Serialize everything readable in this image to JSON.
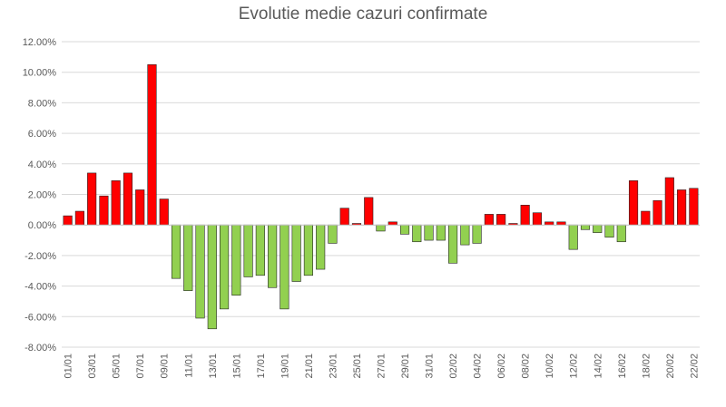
{
  "chart_data": {
    "type": "bar",
    "title": "Evolutie medie cazuri confirmate",
    "xlabel": "",
    "ylabel": "",
    "ylim": [
      -0.08,
      0.12
    ],
    "y_ticks": [
      0.12,
      0.1,
      0.08,
      0.06,
      0.04,
      0.02,
      0.0,
      -0.02,
      -0.04,
      -0.06,
      -0.08
    ],
    "y_tick_labels": [
      "12.00%",
      "10.00%",
      "8.00%",
      "6.00%",
      "4.00%",
      "2.00%",
      "0.00%",
      "-2.00%",
      "-4.00%",
      "-6.00%",
      "-8.00%"
    ],
    "grid": true,
    "legend": "none",
    "colors": {
      "positive": "#FF0000",
      "negative": "#92D050",
      "bar_outline": "#262626",
      "grid": "#D9D9D9",
      "text": "#595959"
    },
    "categories": [
      "01/01",
      "02/01",
      "03/01",
      "04/01",
      "05/01",
      "06/01",
      "07/01",
      "08/01",
      "09/01",
      "10/01",
      "11/01",
      "12/01",
      "13/01",
      "14/01",
      "15/01",
      "16/01",
      "17/01",
      "18/01",
      "19/01",
      "20/01",
      "21/01",
      "22/01",
      "23/01",
      "24/01",
      "25/01",
      "26/01",
      "27/01",
      "28/01",
      "29/01",
      "30/01",
      "31/01",
      "01/02",
      "02/02",
      "03/02",
      "04/02",
      "05/02",
      "06/02",
      "07/02",
      "08/02",
      "09/02",
      "10/02",
      "11/02",
      "12/02",
      "13/02",
      "14/02",
      "15/02",
      "16/02",
      "17/02",
      "18/02",
      "19/02",
      "20/02",
      "21/02",
      "22/02"
    ],
    "x_tick_labels": [
      "01/01",
      "03/01",
      "05/01",
      "07/01",
      "09/01",
      "11/01",
      "13/01",
      "15/01",
      "17/01",
      "19/01",
      "21/01",
      "23/01",
      "25/01",
      "27/01",
      "29/01",
      "31/01",
      "02/02",
      "04/02",
      "06/02",
      "08/02",
      "10/02",
      "12/02",
      "14/02",
      "16/02",
      "18/02",
      "20/02",
      "22/02"
    ],
    "values": [
      0.006,
      0.009,
      0.034,
      0.019,
      0.029,
      0.034,
      0.023,
      0.105,
      0.017,
      -0.035,
      -0.043,
      -0.061,
      -0.068,
      -0.055,
      -0.046,
      -0.034,
      -0.033,
      -0.041,
      -0.055,
      -0.037,
      -0.033,
      -0.029,
      -0.012,
      0.011,
      0.001,
      0.018,
      -0.004,
      0.002,
      -0.006,
      -0.011,
      -0.01,
      -0.01,
      -0.025,
      -0.013,
      -0.012,
      0.007,
      0.007,
      0.001,
      0.013,
      0.008,
      0.002,
      0.002,
      -0.016,
      -0.003,
      -0.005,
      -0.008,
      -0.011,
      0.029,
      0.009,
      0.016,
      0.031,
      0.023,
      0.024
    ]
  }
}
